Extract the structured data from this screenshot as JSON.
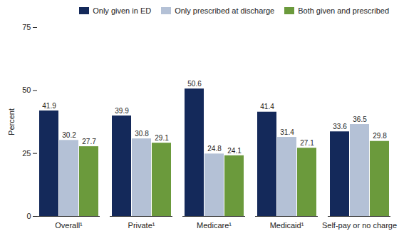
{
  "chart_data": {
    "type": "bar",
    "categories": [
      "Overall¹",
      "Private¹",
      "Medicare¹",
      "Medicaid¹",
      "Self-pay or no charge"
    ],
    "series": [
      {
        "name": "Only given in ED",
        "color": "#14295a",
        "values": [
          41.9,
          39.9,
          50.6,
          41.4,
          33.6
        ]
      },
      {
        "name": "Only prescribed at discharge",
        "color": "#b4c1d6",
        "values": [
          30.2,
          30.8,
          24.8,
          31.4,
          36.5
        ]
      },
      {
        "name": "Both given and prescribed",
        "color": "#6b9a3c",
        "values": [
          27.7,
          29.1,
          24.1,
          27.1,
          29.8
        ]
      }
    ],
    "y_label": "Percent",
    "ylim": [
      0,
      75
    ],
    "yticks": [
      0,
      25,
      50,
      75
    ],
    "grid": false,
    "legend": "top",
    "data_labels": true
  }
}
